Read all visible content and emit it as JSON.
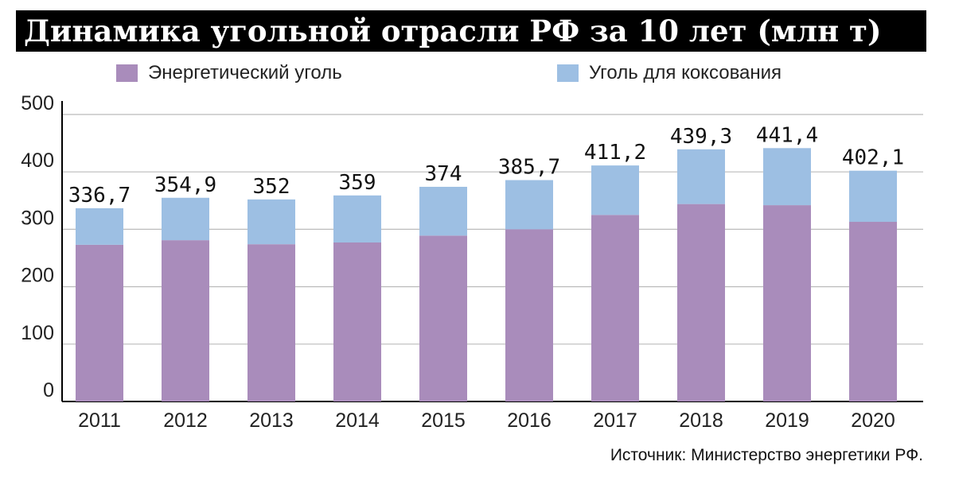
{
  "title": "Динамика угольной отрасли РФ за 10 лет (млн т)",
  "source": "Источник: Министерство энергетики РФ.",
  "colors": {
    "thermal": "#a98cbb",
    "coking": "#9dbfe3",
    "title_bg": "#000000",
    "grid": "#bbbbbb"
  },
  "chart_data": {
    "type": "bar",
    "stacked": true,
    "categories": [
      "2011",
      "2012",
      "2013",
      "2014",
      "2015",
      "2016",
      "2017",
      "2018",
      "2019",
      "2020"
    ],
    "series": [
      {
        "name": "Энергетический уголь",
        "values": [
          273,
          281,
          274,
          277,
          289,
          300,
          325,
          344,
          342,
          313
        ]
      },
      {
        "name": "Уголь для коксования",
        "values": [
          63.7,
          73.9,
          78,
          82,
          85,
          85.7,
          86.2,
          95.3,
          99.4,
          89.1
        ]
      }
    ],
    "totals": [
      "336,7",
      "354,9",
      "352",
      "359",
      "374",
      "385,7",
      "411,2",
      "439,3",
      "441,4",
      "402,1"
    ],
    "yticks": [
      "0",
      "100",
      "200",
      "300",
      "400",
      "500"
    ],
    "ylim": [
      0,
      500
    ],
    "grid": true,
    "legend_position": "top"
  }
}
